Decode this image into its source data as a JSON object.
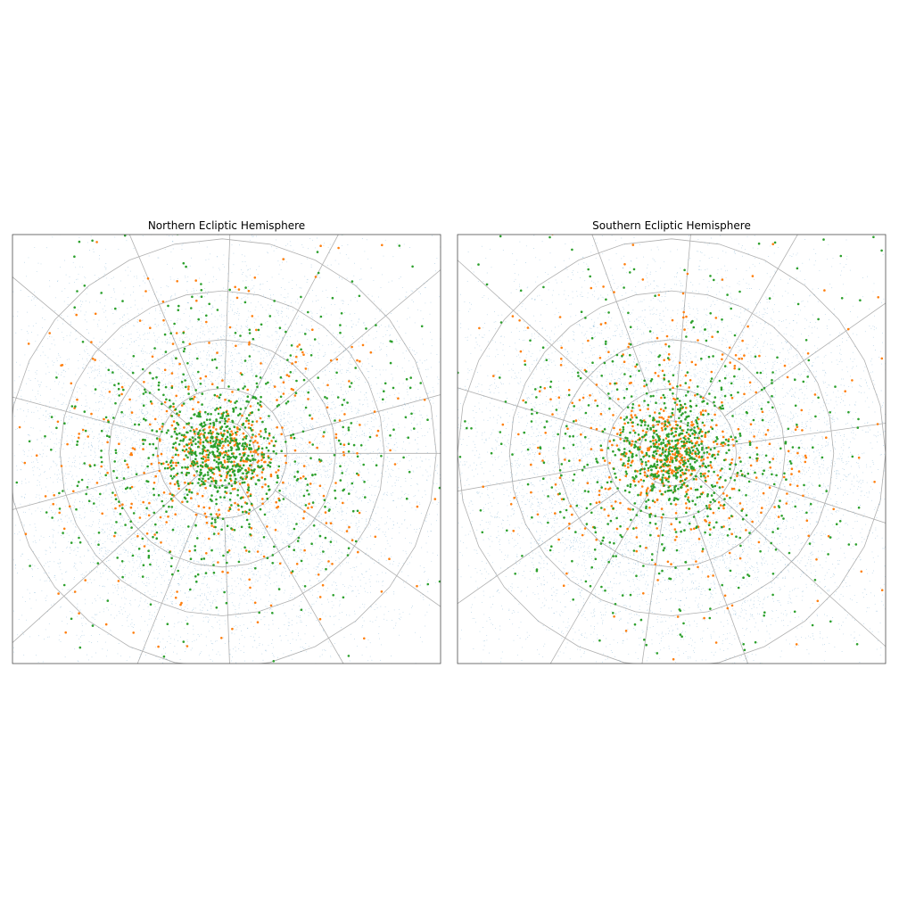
{
  "figure": {
    "background": "#ffffff"
  },
  "colors": {
    "faint_points": "#1f77b4",
    "orange_points": "#ff7f0e",
    "green_points": "#2ca02c",
    "grid": "#b0b0b0"
  },
  "chart_data": [
    {
      "type": "scatter",
      "title": "Northern Ecliptic Hemisphere",
      "projection": "polar (ecliptic pole at center)",
      "grid": true,
      "grid_rings_deg_from_pole": [
        10,
        20,
        35,
        50,
        66
      ],
      "grid_meridians_deg": [
        0,
        15,
        40,
        62,
        88,
        113,
        140,
        165,
        195,
        222,
        248,
        272,
        300,
        325
      ],
      "xlim": [
        -1,
        1
      ],
      "ylim": [
        -1,
        1
      ],
      "center": [
        -0.02,
        -0.02
      ],
      "series": [
        {
          "color": "#1f77b4",
          "marker": "tiny dot",
          "count": 9000
        },
        {
          "color": "#ff7f0e",
          "marker": "small dot",
          "count": 620
        },
        {
          "color": "#2ca02c",
          "marker": "small dot",
          "count": 1050
        }
      ]
    },
    {
      "type": "scatter",
      "title": "Southern Ecliptic Hemisphere",
      "projection": "polar (ecliptic pole at center)",
      "grid": true,
      "grid_rings_deg_from_pole": [
        10,
        20,
        35,
        50,
        66
      ],
      "grid_meridians_deg": [
        8,
        35,
        60,
        85,
        110,
        138,
        163,
        190,
        215,
        240,
        262,
        290,
        318,
        342
      ],
      "xlim": [
        -1,
        1
      ],
      "ylim": [
        -1,
        1
      ],
      "center": [
        0.0,
        -0.02
      ],
      "series": [
        {
          "color": "#1f77b4",
          "marker": "tiny dot",
          "count": 9000
        },
        {
          "color": "#ff7f0e",
          "marker": "small dot",
          "count": 650
        },
        {
          "color": "#2ca02c",
          "marker": "small dot",
          "count": 1000
        }
      ]
    }
  ]
}
